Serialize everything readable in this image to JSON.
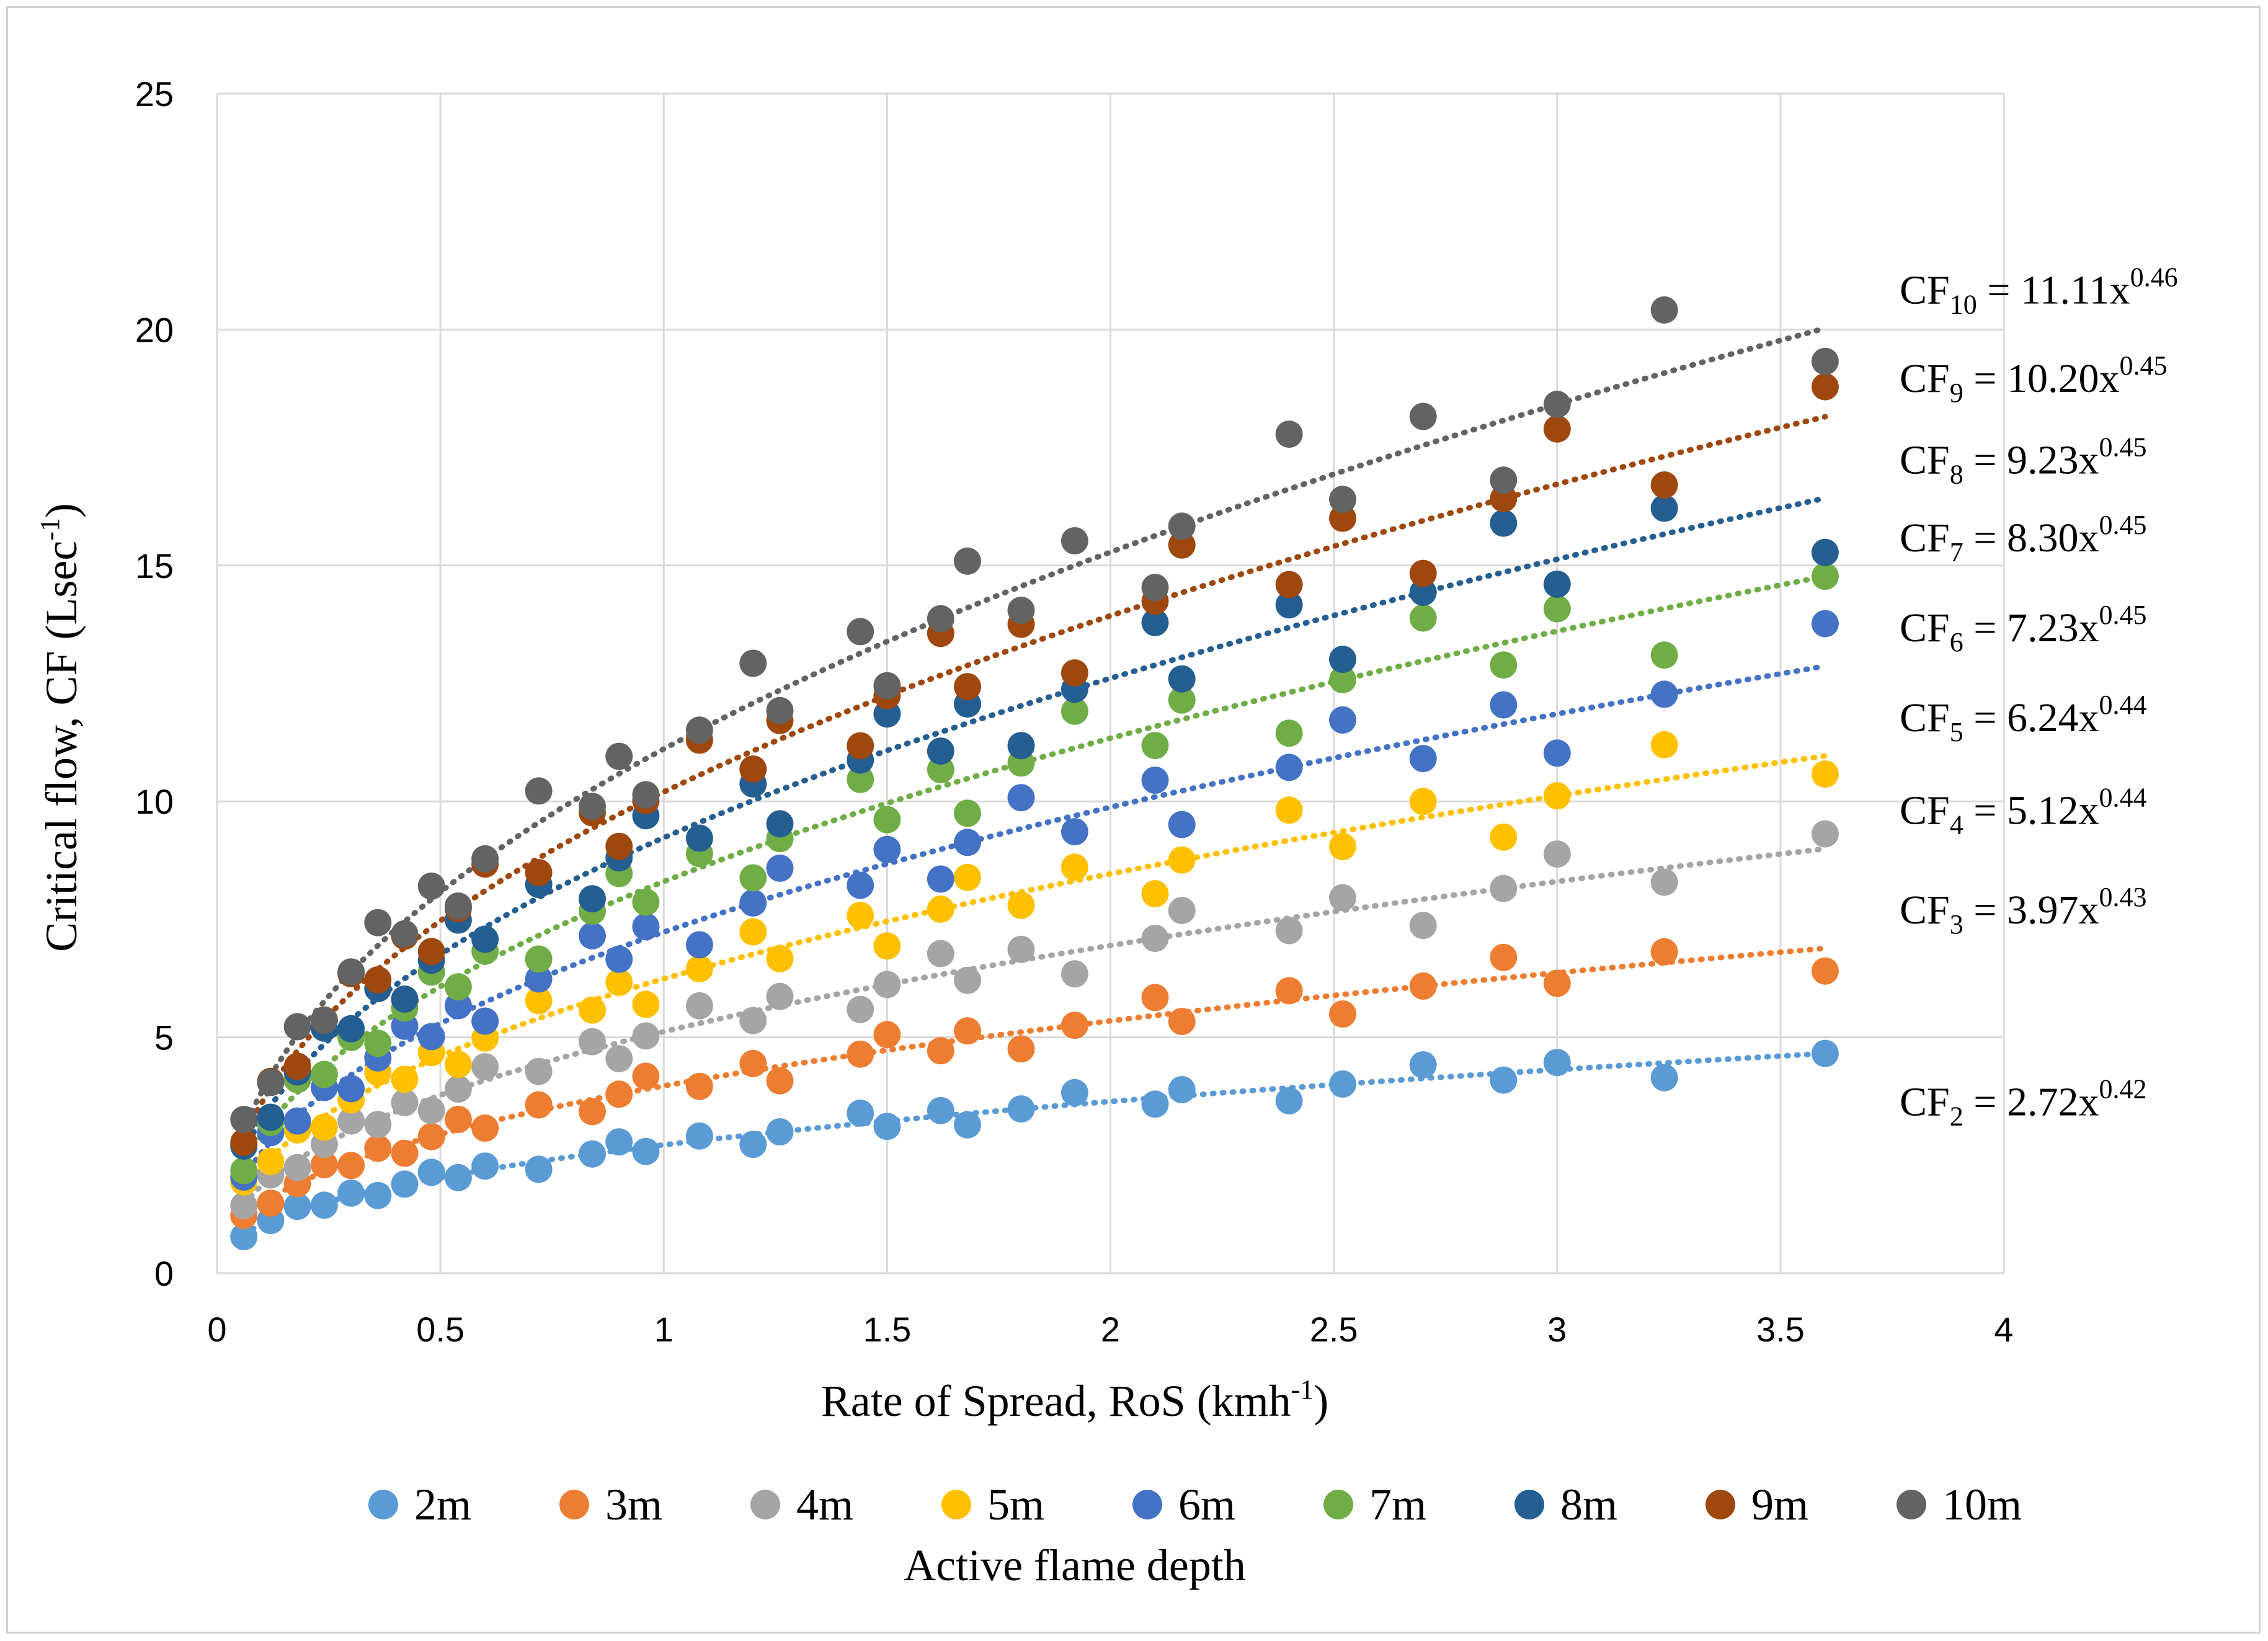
{
  "chart_data": {
    "type": "scatter",
    "title": "",
    "xlabel": {
      "text": "Rate of Spread, RoS (kmh",
      "sup": "-1",
      "close": ")"
    },
    "ylabel": {
      "text": "Critical flow, CF (Lsec",
      "sup": "-1",
      "close": ")"
    },
    "xlim": [
      0,
      4
    ],
    "ylim": [
      0,
      25
    ],
    "xticks": [
      "0",
      "0.5",
      "1",
      "1.5",
      "2",
      "2.5",
      "3",
      "3.5",
      "4"
    ],
    "yticks": [
      "0",
      "5",
      "10",
      "15",
      "20",
      "25"
    ],
    "grid": true,
    "legend_position": "bottom",
    "legend_title": "Active flame depth",
    "x": [
      0.06,
      0.12,
      0.18,
      0.24,
      0.3,
      0.36,
      0.42,
      0.48,
      0.54,
      0.6,
      0.72,
      0.84,
      0.9,
      0.96,
      1.08,
      1.2,
      1.26,
      1.44,
      1.5,
      1.62,
      1.68,
      1.8,
      1.92,
      2.1,
      2.16,
      2.4,
      2.52,
      2.7,
      2.88,
      3.0,
      3.24,
      3.6
    ],
    "series": [
      {
        "name": "2m",
        "color": "#5B9BD5",
        "fit": {
          "label": "CF",
          "sub": "2",
          "coef": "2.72",
          "exp": "0.42"
        },
        "a": 2.72,
        "b": 0.42
      },
      {
        "name": "3m",
        "color": "#ED7D31",
        "fit": {
          "label": "CF",
          "sub": "3",
          "coef": "3.97",
          "exp": "0.43"
        },
        "a": 3.97,
        "b": 0.43
      },
      {
        "name": "4m",
        "color": "#A5A5A5",
        "fit": {
          "label": "CF",
          "sub": "4",
          "coef": "5.12",
          "exp": "0.44"
        },
        "a": 5.12,
        "b": 0.44
      },
      {
        "name": "5m",
        "color": "#FFC000",
        "fit": {
          "label": "CF",
          "sub": "5",
          "coef": "6.24",
          "exp": "0.44"
        },
        "a": 6.24,
        "b": 0.44
      },
      {
        "name": "6m",
        "color": "#4472C4",
        "fit": {
          "label": "CF",
          "sub": "6",
          "coef": "7.23",
          "exp": "0.45"
        },
        "a": 7.23,
        "b": 0.45
      },
      {
        "name": "7m",
        "color": "#70AD47",
        "fit": {
          "label": "CF",
          "sub": "7",
          "coef": "8.30",
          "exp": "0.45"
        },
        "a": 8.3,
        "b": 0.45
      },
      {
        "name": "8m",
        "color": "#255E91",
        "fit": {
          "label": "CF",
          "sub": "8",
          "coef": "9.23",
          "exp": "0.45"
        },
        "a": 9.23,
        "b": 0.45
      },
      {
        "name": "9m",
        "color": "#9E480E",
        "fit": {
          "label": "CF",
          "sub": "9",
          "coef": "10.20",
          "exp": "0.45"
        },
        "a": 10.2,
        "b": 0.45
      },
      {
        "name": "10m",
        "color": "#636363",
        "fit": {
          "label": "CF",
          "sub": "10",
          "coef": "11.11",
          "exp": "0.46"
        },
        "a": 11.11,
        "b": 0.46
      }
    ]
  }
}
